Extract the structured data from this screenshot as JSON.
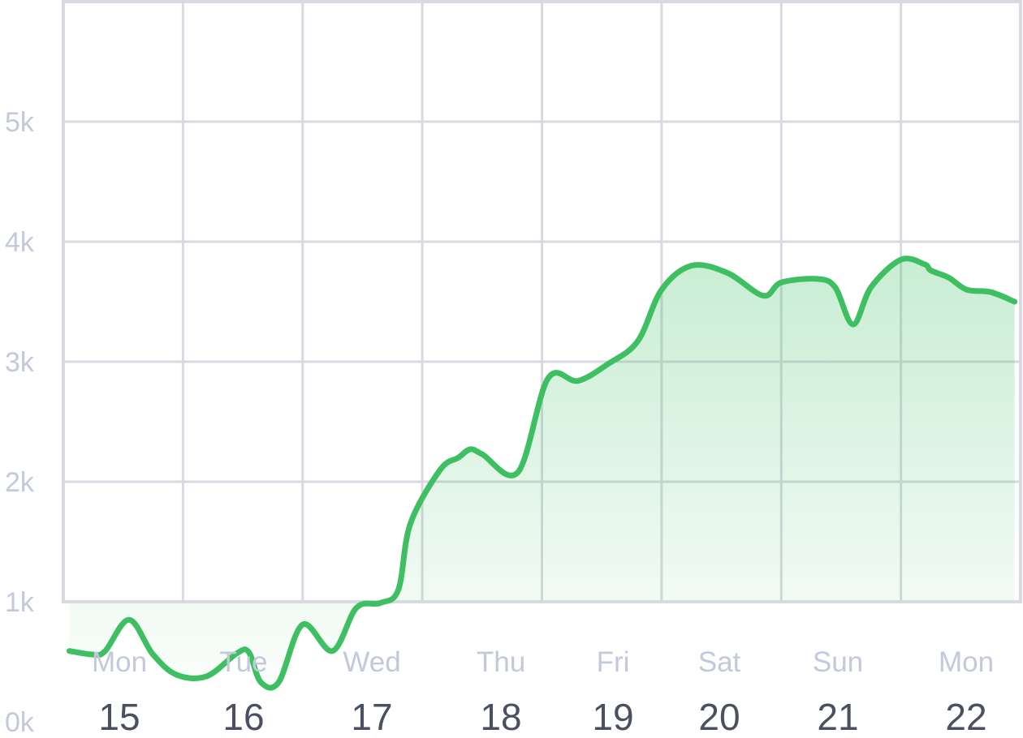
{
  "colors": {
    "line": "#3dbf62",
    "area_top": "#3dbf62",
    "grid": "#d9d9e1",
    "tick_label": "#c3c9dc",
    "date_label": "#4b5060"
  },
  "chart_data": {
    "type": "area",
    "title": "",
    "xlabel": "",
    "ylabel": "",
    "grid": true,
    "ylim": [
      0,
      5000
    ],
    "y_ticks": [
      "0k",
      "1k",
      "2k",
      "3k",
      "4k",
      "5k"
    ],
    "x_ticks": [
      {
        "day": "Mon",
        "date": "15"
      },
      {
        "day": "Tue",
        "date": "16"
      },
      {
        "day": "Wed",
        "date": "17"
      },
      {
        "day": "Thu",
        "date": "18"
      },
      {
        "day": "Fri",
        "date": "19"
      },
      {
        "day": "Sat",
        "date": "20"
      },
      {
        "day": "Sun",
        "date": "21"
      },
      {
        "day": "Mon",
        "date": "22"
      }
    ],
    "series": [
      {
        "x": [
          0.05,
          0.25,
          0.35,
          0.55,
          0.75,
          0.95,
          1.2,
          1.45,
          1.55,
          1.65,
          1.8,
          2.0,
          2.25,
          2.45,
          2.65,
          2.8,
          2.9,
          3.15,
          3.3,
          3.4,
          3.5,
          3.8,
          4.05,
          4.3,
          4.55,
          4.8,
          5.0,
          5.25,
          5.55,
          5.85,
          6.0,
          6.3,
          6.45,
          6.6,
          6.75,
          7.0,
          7.2,
          7.25,
          7.4,
          7.55,
          7.75,
          7.95
        ],
        "values": [
          590,
          560,
          590,
          850,
          560,
          390,
          380,
          570,
          580,
          330,
          330,
          810,
          590,
          950,
          990,
          1100,
          1650,
          2100,
          2200,
          2270,
          2230,
          2080,
          2860,
          2840,
          2980,
          3170,
          3600,
          3800,
          3740,
          3550,
          3660,
          3690,
          3620,
          3310,
          3620,
          3850,
          3810,
          3760,
          3700,
          3600,
          3580,
          3500
        ]
      }
    ]
  }
}
